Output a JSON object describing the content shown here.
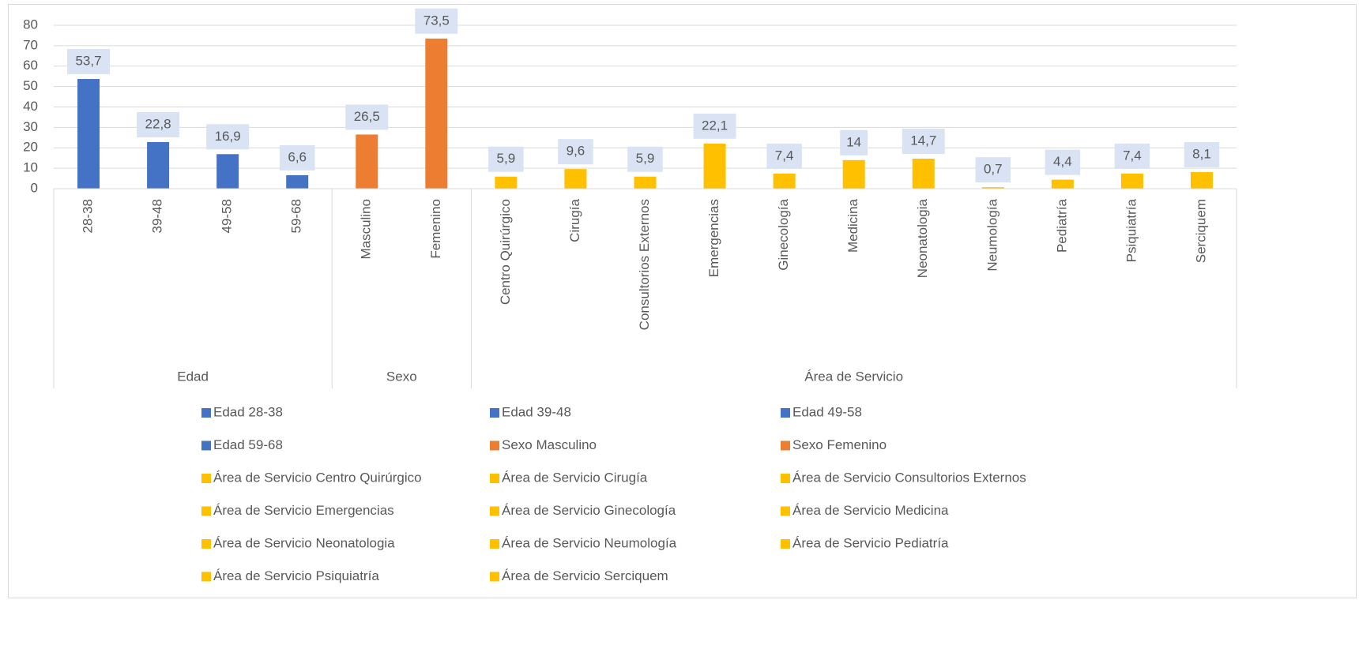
{
  "chart_data": {
    "type": "bar",
    "ylim": [
      0,
      80
    ],
    "yticks": [
      0,
      10,
      20,
      30,
      40,
      50,
      60,
      70,
      80
    ],
    "grid": true,
    "groups": [
      {
        "name": "Edad",
        "color": "#4472c4",
        "categories": [
          "28-38",
          "39-48",
          "49-58",
          "59-68"
        ],
        "values": [
          53.7,
          22.8,
          16.9,
          6.6
        ],
        "value_labels": [
          "53,7",
          "22,8",
          "16,9",
          "6,6"
        ],
        "legend_entries": [
          "Edad 28-38",
          "Edad 39-48",
          "Edad 49-58",
          "Edad 59-68"
        ]
      },
      {
        "name": "Sexo",
        "color": "#ed7d31",
        "categories": [
          "Masculino",
          "Femenino"
        ],
        "values": [
          26.5,
          73.5
        ],
        "value_labels": [
          "26,5",
          "73,5"
        ],
        "legend_entries": [
          "Sexo Masculino",
          "Sexo Femenino"
        ]
      },
      {
        "name": "Área de Servicio",
        "color": "#ffc000",
        "categories": [
          "Centro Quirúrgico",
          "Cirugía",
          "Consultorios Externos",
          "Emergencias",
          "Ginecología",
          "Medicina",
          "Neonatologia",
          "Neumología",
          "Pediatría",
          "Psiquiatría",
          "Serciquem"
        ],
        "values": [
          5.9,
          9.6,
          5.9,
          22.1,
          7.4,
          14,
          14.7,
          0.7,
          4.4,
          7.4,
          8.1
        ],
        "value_labels": [
          "5,9",
          "9,6",
          "5,9",
          "22,1",
          "7,4",
          "14",
          "14,7",
          "0,7",
          "4,4",
          "7,4",
          "8,1"
        ],
        "legend_entries": [
          "Área de Servicio Centro Quirúrgico",
          "Área de Servicio Cirugía",
          "Área de Servicio Consultorios Externos",
          "Área de Servicio Emergencias",
          "Área de Servicio Ginecología",
          "Área de Servicio Medicina",
          "Área de Servicio Neonatologia",
          "Área de Servicio Neumología",
          "Área de Servicio Pediatría",
          "Área de Servicio Psiquiatría",
          "Área de Servicio Serciquem"
        ]
      }
    ]
  }
}
